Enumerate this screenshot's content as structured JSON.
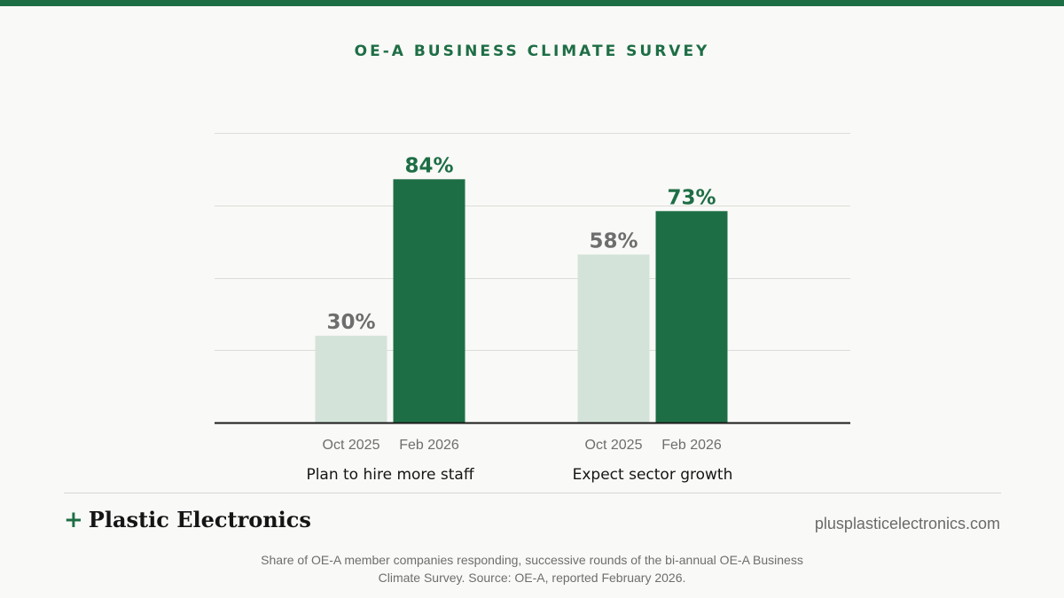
{
  "header": {
    "kicker": "OE-A BUSINESS CLIMATE SURVEY"
  },
  "colors": {
    "accent": "#1e6e45",
    "light_bar": "#d3e3d9",
    "muted_text": "#6e6e6e",
    "background": "#f9f9f7"
  },
  "chart_data": {
    "type": "bar",
    "title": "",
    "xlabel": "",
    "ylabel": "",
    "ylim": [
      0,
      100
    ],
    "grid": true,
    "value_suffix": "%",
    "groups": [
      {
        "label": "Plan to hire more staff",
        "bars": [
          {
            "period": "Oct 2025",
            "value": 30,
            "label": "30%"
          },
          {
            "period": "Feb 2026",
            "value": 84,
            "label": "84%"
          }
        ]
      },
      {
        "label": "Expect sector growth",
        "bars": [
          {
            "period": "Oct 2025",
            "value": 58,
            "label": "58%"
          },
          {
            "period": "Feb 2026",
            "value": 73,
            "label": "73%"
          }
        ]
      }
    ]
  },
  "footer": {
    "brand_plus": "+",
    "brand_name": "Plastic Electronics",
    "site_url": "plusplasticelectronics.com",
    "footnote": "Share of OE-A member companies responding, successive rounds of the bi-annual OE-A Business Climate Survey. Source: OE-A, reported February 2026."
  }
}
